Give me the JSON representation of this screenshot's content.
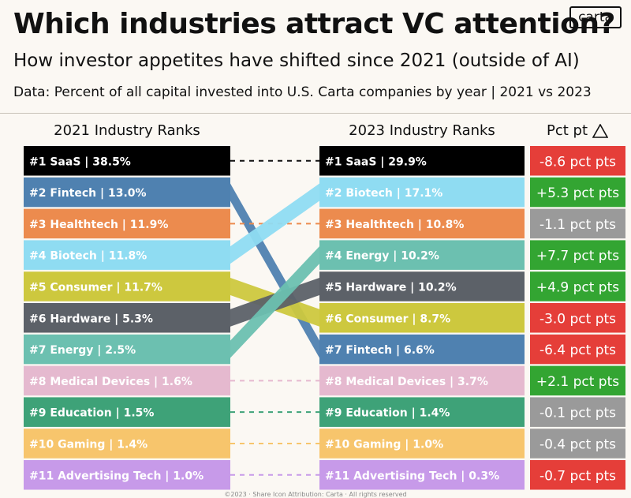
{
  "header": {
    "title": "Which industries attract VC attention?",
    "subtitle": "How investor appetites have shifted since 2021 (outside of AI)",
    "source": "Data: Percent of all capital invested into U.S. Carta companies by year | 2021 vs 2023",
    "logo": "carta"
  },
  "columns": {
    "left": "2021 Industry Ranks",
    "right": "2023 Industry Ranks",
    "delta": "Pct pt"
  },
  "colors": {
    "SaaS": "#000000",
    "Fintech": "#4f81b0",
    "Healthtech": "#ec8b4e",
    "Biotech": "#8fdcf2",
    "Consumer": "#cdc83e",
    "Hardware": "#5c6168",
    "Energy": "#6cc0b0",
    "Medical Devices": "#e5b9cf",
    "Education": "#3ea278",
    "Gaming": "#f7c56c",
    "Advertising Tech": "#c79ae9",
    "positive": "#33a532",
    "negative": "#e53e39",
    "neutral": "#9a9a9a"
  },
  "chart_data": {
    "type": "table",
    "title": "Which industries attract VC attention?",
    "ranks_2021": [
      {
        "label": "#1 SaaS | 38.5%",
        "industry": "SaaS",
        "value": 38.5
      },
      {
        "label": "#2 Fintech | 13.0%",
        "industry": "Fintech",
        "value": 13.0
      },
      {
        "label": "#3 Healthtech | 11.9%",
        "industry": "Healthtech",
        "value": 11.9
      },
      {
        "label": "#4 Biotech | 11.8%",
        "industry": "Biotech",
        "value": 11.8
      },
      {
        "label": "#5 Consumer | 11.7%",
        "industry": "Consumer",
        "value": 11.7
      },
      {
        "label": "#6 Hardware | 5.3%",
        "industry": "Hardware",
        "value": 5.3
      },
      {
        "label": "#7 Energy | 2.5%",
        "industry": "Energy",
        "value": 2.5
      },
      {
        "label": "#8 Medical Devices | 1.6%",
        "industry": "Medical Devices",
        "value": 1.6
      },
      {
        "label": "#9 Education | 1.5%",
        "industry": "Education",
        "value": 1.5
      },
      {
        "label": "#10 Gaming | 1.4%",
        "industry": "Gaming",
        "value": 1.4
      },
      {
        "label": "#11 Advertising Tech | 1.0%",
        "industry": "Advertising Tech",
        "value": 1.0
      }
    ],
    "ranks_2023": [
      {
        "label": "#1 SaaS | 29.9%",
        "industry": "SaaS",
        "value": 29.9
      },
      {
        "label": "#2 Biotech | 17.1%",
        "industry": "Biotech",
        "value": 17.1
      },
      {
        "label": "#3 Healthtech | 10.8%",
        "industry": "Healthtech",
        "value": 10.8
      },
      {
        "label": "#4 Energy | 10.2%",
        "industry": "Energy",
        "value": 10.2
      },
      {
        "label": "#5 Hardware | 10.2%",
        "industry": "Hardware",
        "value": 10.2
      },
      {
        "label": "#6 Consumer | 8.7%",
        "industry": "Consumer",
        "value": 8.7
      },
      {
        "label": "#7 Fintech | 6.6%",
        "industry": "Fintech",
        "value": 6.6
      },
      {
        "label": "#8 Medical Devices | 3.7%",
        "industry": "Medical Devices",
        "value": 3.7
      },
      {
        "label": "#9 Education | 1.4%",
        "industry": "Education",
        "value": 1.4
      },
      {
        "label": "#10 Gaming | 1.0%",
        "industry": "Gaming",
        "value": 1.0
      },
      {
        "label": "#11 Advertising Tech | 0.3%",
        "industry": "Advertising Tech",
        "value": 0.3
      }
    ],
    "changes": [
      {
        "label": "-8.6 pct pts",
        "value": -8.6,
        "status": "negative"
      },
      {
        "label": "+5.3 pct pts",
        "value": 5.3,
        "status": "positive"
      },
      {
        "label": "-1.1 pct pts",
        "value": -1.1,
        "status": "neutral"
      },
      {
        "label": "+7.7 pct pts",
        "value": 7.7,
        "status": "positive"
      },
      {
        "label": "+4.9 pct pts",
        "value": 4.9,
        "status": "positive"
      },
      {
        "label": "-3.0 pct pts",
        "value": -3.0,
        "status": "negative"
      },
      {
        "label": "-6.4 pct pts",
        "value": -6.4,
        "status": "negative"
      },
      {
        "label": "+2.1 pct pts",
        "value": 2.1,
        "status": "positive"
      },
      {
        "label": "-0.1 pct pts",
        "value": -0.1,
        "status": "neutral"
      },
      {
        "label": "-0.4 pct pts",
        "value": -0.4,
        "status": "neutral"
      },
      {
        "label": "-0.7 pct pts",
        "value": -0.7,
        "status": "negative"
      }
    ]
  },
  "footer": "©2023 · Share Icon Attribution: Carta · All rights reserved"
}
